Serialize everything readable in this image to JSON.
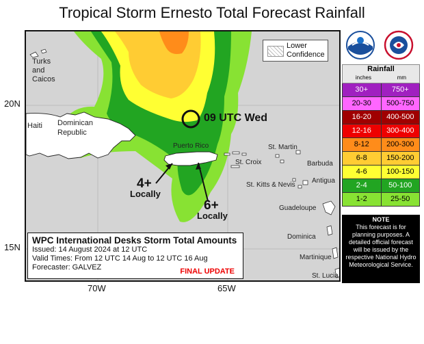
{
  "title": "Tropical Storm Ernesto Total Forecast Rainfall",
  "lower_confidence": [
    "Lower",
    "Confidence"
  ],
  "storm_position_label": "09 UTC Wed",
  "places": {
    "turks": "Turks",
    "and": "and",
    "caicos": "Caicos",
    "haiti": "Haiti",
    "dominican": "Dominican",
    "republic": "Republic",
    "puerto_rico": "Puerto Rico",
    "st_martin": "St. Martin",
    "st_croix": "St. Croix",
    "barbuda": "Barbuda",
    "antigua": "Antigua",
    "st_kitts": "St. Kitts & Nevis",
    "guadeloupe": "Guadeloupe",
    "dominica": "Dominica",
    "martinique": "Martinique",
    "st_lucia": "St. Lucia"
  },
  "callouts": [
    {
      "amount": "4+",
      "label": "Locally"
    },
    {
      "amount": "6+",
      "label": "Locally"
    }
  ],
  "axes": {
    "lat_20": "20N",
    "lat_15": "15N",
    "lon_70": "70W",
    "lon_65": "65W"
  },
  "legend": {
    "title": "Rainfall",
    "unit_in": "inches",
    "unit_mm": "mm",
    "rows": [
      {
        "inches": "30+",
        "mm": "750+",
        "color": "#a020c0",
        "text_color": "#ffffff"
      },
      {
        "inches": "20-30",
        "mm": "500-750",
        "color": "#ff66ff",
        "text_color": "#000000"
      },
      {
        "inches": "16-20",
        "mm": "400-500",
        "color": "#a00000",
        "text_color": "#ffffff"
      },
      {
        "inches": "12-16",
        "mm": "300-400",
        "color": "#ee0000",
        "text_color": "#ffffff"
      },
      {
        "inches": "8-12",
        "mm": "200-300",
        "color": "#ff8c1a",
        "text_color": "#000000"
      },
      {
        "inches": "6-8",
        "mm": "150-200",
        "color": "#ffcc33",
        "text_color": "#000000"
      },
      {
        "inches": "4-6",
        "mm": "100-150",
        "color": "#ffff33",
        "text_color": "#000000"
      },
      {
        "inches": "2-4",
        "mm": "50-100",
        "color": "#22a522",
        "text_color": "#ffffff"
      },
      {
        "inches": "1-2",
        "mm": "25-50",
        "color": "#88e233",
        "text_color": "#000000"
      }
    ]
  },
  "note": {
    "title": "NOTE",
    "body": "This forecast is for planning purposes. A detailed official forecast will be issued by the respective National Hydro Meteorological Service."
  },
  "info": {
    "heading": "WPC International Desks Storm Total Amounts",
    "issued": "Issued:  14 August 2024 at 12 UTC",
    "valid": "Valid Times:  From 12 UTC 14 Aug  to  12 UTC 16 Aug",
    "forecaster": "Forecaster:  GALVEZ",
    "final": "FINAL UPDATE"
  },
  "logos": [
    "NOAA",
    "NATIONAL WEATHER SERVICE"
  ]
}
